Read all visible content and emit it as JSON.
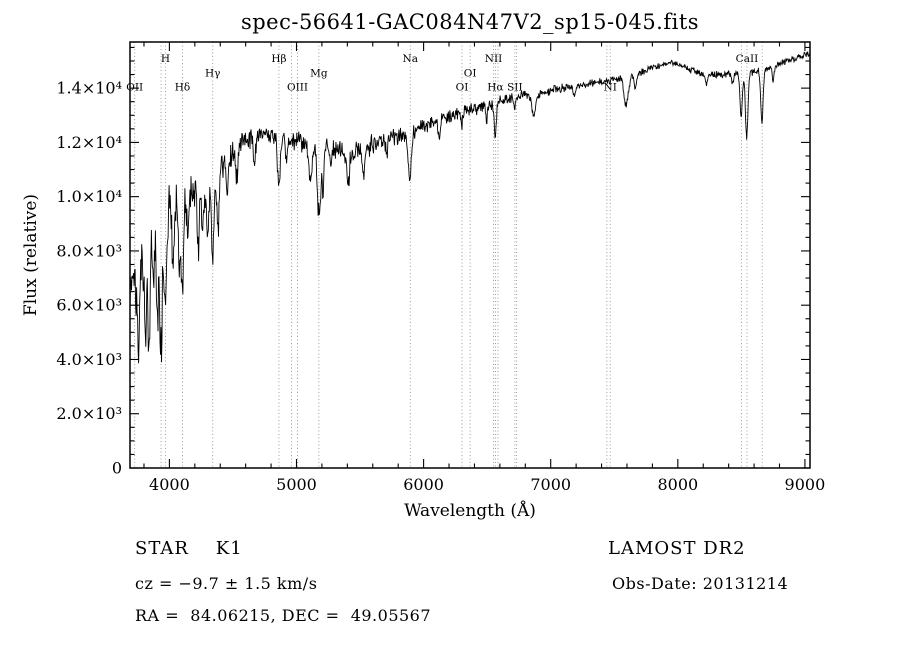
{
  "title": "spec-56641-GAC084N47V2_sp15-045.fits",
  "annotations": {
    "object_class": "STAR    K1",
    "cz": "cz = −9.7 ± 1.5 km/s",
    "ra_dec": "RA =  84.06215, DEC =  49.05567",
    "survey": "LAMOST DR2",
    "obs_date": "Obs-Date: 20131214"
  },
  "chart_data": {
    "type": "line",
    "title": "spec-56641-GAC084N47V2_sp15-045.fits",
    "xlabel": "Wavelength (Å)",
    "ylabel": "Flux (relative)",
    "xlim": [
      3690,
      9040
    ],
    "ylim": [
      0,
      15700
    ],
    "grid": false,
    "legend": "none",
    "line_color": "#000000",
    "marker_line_color": "#888888",
    "x_ticks": {
      "values": [
        4000,
        5000,
        6000,
        7000,
        8000,
        9000
      ],
      "labels": [
        "4000",
        "5000",
        "6000",
        "7000",
        "8000",
        "9000"
      ],
      "minor_step": 200
    },
    "y_ticks": {
      "values": [
        0,
        2000,
        4000,
        6000,
        8000,
        10000,
        12000,
        14000
      ],
      "labels": [
        "0",
        "2.0×10³",
        "4.0×10³",
        "6.0×10³",
        "8.0×10³",
        "1.0×10⁴",
        "1.2×10⁴",
        "1.4×10⁴"
      ],
      "minor_step": 500
    },
    "spectral_lines": [
      {
        "label": "OII",
        "wavelength": 3727,
        "row": 3
      },
      {
        "label": "",
        "wavelength": 3934,
        "row": 0
      },
      {
        "label": "H",
        "wavelength": 3969,
        "row": 1
      },
      {
        "label": "Hδ",
        "wavelength": 4103,
        "row": 3
      },
      {
        "label": "Hγ",
        "wavelength": 4341,
        "row": 2
      },
      {
        "label": "Hβ",
        "wavelength": 4862,
        "row": 1
      },
      {
        "label": "",
        "wavelength": 4960,
        "row": 0
      },
      {
        "label": "OIII",
        "wavelength": 5008,
        "row": 3
      },
      {
        "label": "Mg",
        "wavelength": 5176,
        "row": 2
      },
      {
        "label": "Na",
        "wavelength": 5895,
        "row": 1
      },
      {
        "label": "OI",
        "wavelength": 6302,
        "row": 3
      },
      {
        "label": "OI",
        "wavelength": 6366,
        "row": 2
      },
      {
        "label": "NII",
        "wavelength": 6550,
        "row": 1
      },
      {
        "label": "Hα",
        "wavelength": 6565,
        "row": 3
      },
      {
        "label": "",
        "wavelength": 6585,
        "row": 0
      },
      {
        "label": "SII",
        "wavelength": 6718,
        "row": 3
      },
      {
        "label": "",
        "wavelength": 6732,
        "row": 0
      },
      {
        "label": "",
        "wavelength": 7442,
        "row": 0
      },
      {
        "label": "NI",
        "wavelength": 7468,
        "row": 3
      },
      {
        "label": "",
        "wavelength": 8500,
        "row": 0
      },
      {
        "label": "CaII",
        "wavelength": 8544,
        "row": 1
      },
      {
        "label": "",
        "wavelength": 8664,
        "row": 0
      }
    ],
    "spectrum": {
      "sample_step": 4,
      "seed": 20131214,
      "continuum": [
        [
          3690,
          6200
        ],
        [
          3720,
          6900
        ],
        [
          3760,
          7600
        ],
        [
          3800,
          8300
        ],
        [
          3850,
          8800
        ],
        [
          3900,
          9150
        ],
        [
          3950,
          9250
        ],
        [
          4000,
          9600
        ],
        [
          4060,
          9850
        ],
        [
          4120,
          10050
        ],
        [
          4200,
          10300
        ],
        [
          4300,
          10550
        ],
        [
          4400,
          11100
        ],
        [
          4500,
          11650
        ],
        [
          4600,
          12050
        ],
        [
          4700,
          12250
        ],
        [
          4800,
          12300
        ],
        [
          4900,
          12200
        ],
        [
          5000,
          12050
        ],
        [
          5100,
          11950
        ],
        [
          5250,
          11950
        ],
        [
          5400,
          11500
        ],
        [
          5550,
          11800
        ],
        [
          5700,
          12150
        ],
        [
          5850,
          12250
        ],
        [
          6000,
          12600
        ],
        [
          6150,
          12900
        ],
        [
          6300,
          13100
        ],
        [
          6450,
          13300
        ],
        [
          6600,
          13500
        ],
        [
          6750,
          13700
        ],
        [
          6900,
          13800
        ],
        [
          7050,
          13950
        ],
        [
          7200,
          14100
        ],
        [
          7350,
          14200
        ],
        [
          7500,
          14300
        ],
        [
          7650,
          14450
        ],
        [
          7800,
          14750
        ],
        [
          7950,
          14950
        ],
        [
          8080,
          14700
        ],
        [
          8200,
          14500
        ],
        [
          8350,
          14500
        ],
        [
          8500,
          14550
        ],
        [
          8650,
          14650
        ],
        [
          8800,
          14900
        ],
        [
          8950,
          15150
        ],
        [
          9040,
          15300
        ]
      ],
      "noise_level": [
        [
          3690,
          1700
        ],
        [
          3800,
          1550
        ],
        [
          3900,
          1450
        ],
        [
          4000,
          1050
        ],
        [
          4150,
          950
        ],
        [
          4350,
          820
        ],
        [
          4600,
          560
        ],
        [
          4900,
          470
        ],
        [
          5200,
          520
        ],
        [
          5500,
          500
        ],
        [
          5800,
          430
        ],
        [
          6100,
          360
        ],
        [
          6400,
          310
        ],
        [
          6700,
          260
        ],
        [
          7000,
          220
        ],
        [
          7300,
          185
        ],
        [
          7600,
          175
        ],
        [
          7900,
          165
        ],
        [
          8200,
          160
        ],
        [
          8500,
          175
        ],
        [
          8800,
          155
        ],
        [
          9040,
          170
        ]
      ],
      "absorption_features": [
        [
          3755,
          2800,
          10
        ],
        [
          3810,
          3600,
          9
        ],
        [
          3840,
          4800,
          9
        ],
        [
          3875,
          2500,
          8
        ],
        [
          3905,
          3600,
          9
        ],
        [
          3934,
          4800,
          11
        ],
        [
          3970,
          3200,
          10
        ],
        [
          4030,
          2200,
          8
        ],
        [
          4078,
          2400,
          8
        ],
        [
          4102,
          3400,
          10
        ],
        [
          4144,
          1800,
          8
        ],
        [
          4227,
          2200,
          9
        ],
        [
          4260,
          1500,
          8
        ],
        [
          4300,
          2000,
          10
        ],
        [
          4341,
          3200,
          10
        ],
        [
          4383,
          2000,
          9
        ],
        [
          4455,
          1300,
          8
        ],
        [
          4530,
          1100,
          8
        ],
        [
          4668,
          900,
          8
        ],
        [
          4861,
          1900,
          11
        ],
        [
          4920,
          700,
          8
        ],
        [
          5110,
          1400,
          12
        ],
        [
          5168,
          2100,
          8
        ],
        [
          5185,
          2200,
          8
        ],
        [
          5208,
          1800,
          8
        ],
        [
          5270,
          1000,
          8
        ],
        [
          5406,
          1100,
          9
        ],
        [
          5528,
          900,
          9
        ],
        [
          5710,
          700,
          8
        ],
        [
          5890,
          1700,
          12
        ],
        [
          6122,
          700,
          8
        ],
        [
          6300,
          500,
          8
        ],
        [
          6495,
          500,
          7
        ],
        [
          6563,
          1200,
          9
        ],
        [
          6717,
          450,
          7
        ],
        [
          6867,
          850,
          14
        ],
        [
          7186,
          400,
          10
        ],
        [
          7594,
          1050,
          16
        ],
        [
          7665,
          500,
          8
        ],
        [
          8226,
          350,
          8
        ],
        [
          8433,
          400,
          8
        ],
        [
          8498,
          1600,
          9
        ],
        [
          8542,
          2400,
          10
        ],
        [
          8662,
          1900,
          9
        ],
        [
          8750,
          500,
          8
        ]
      ]
    }
  }
}
